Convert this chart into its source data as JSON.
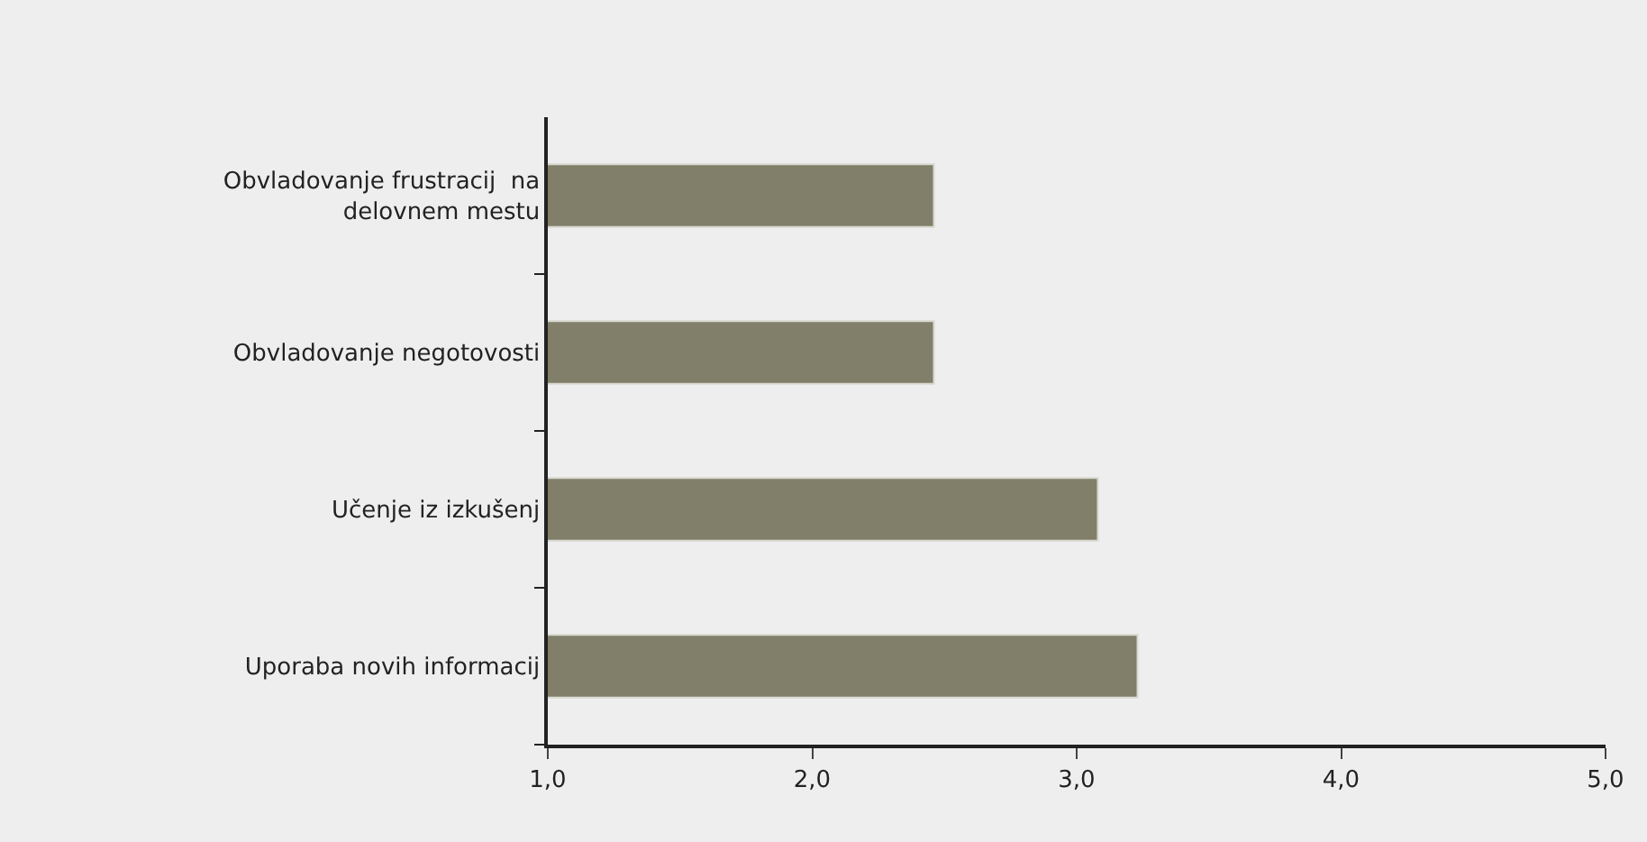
{
  "chart_data": {
    "type": "bar",
    "orientation": "horizontal",
    "categories": [
      "Obvladovanje frustracij  na\ndelovnem mestu",
      "Obvladovanje negotovosti",
      "Učenje iz izkušenj",
      "Uporaba novih informacij"
    ],
    "values": [
      2.46,
      2.46,
      3.08,
      3.23
    ],
    "color": "#817f69",
    "xlim": [
      1.0,
      5.0
    ],
    "xticks": [
      {
        "value": 1.0,
        "label": "1,0"
      },
      {
        "value": 2.0,
        "label": "2,0"
      },
      {
        "value": 3.0,
        "label": "3,0"
      },
      {
        "value": 4.0,
        "label": "4,0"
      },
      {
        "value": 5.0,
        "label": "5,0"
      }
    ],
    "grid": false,
    "legend": false
  }
}
